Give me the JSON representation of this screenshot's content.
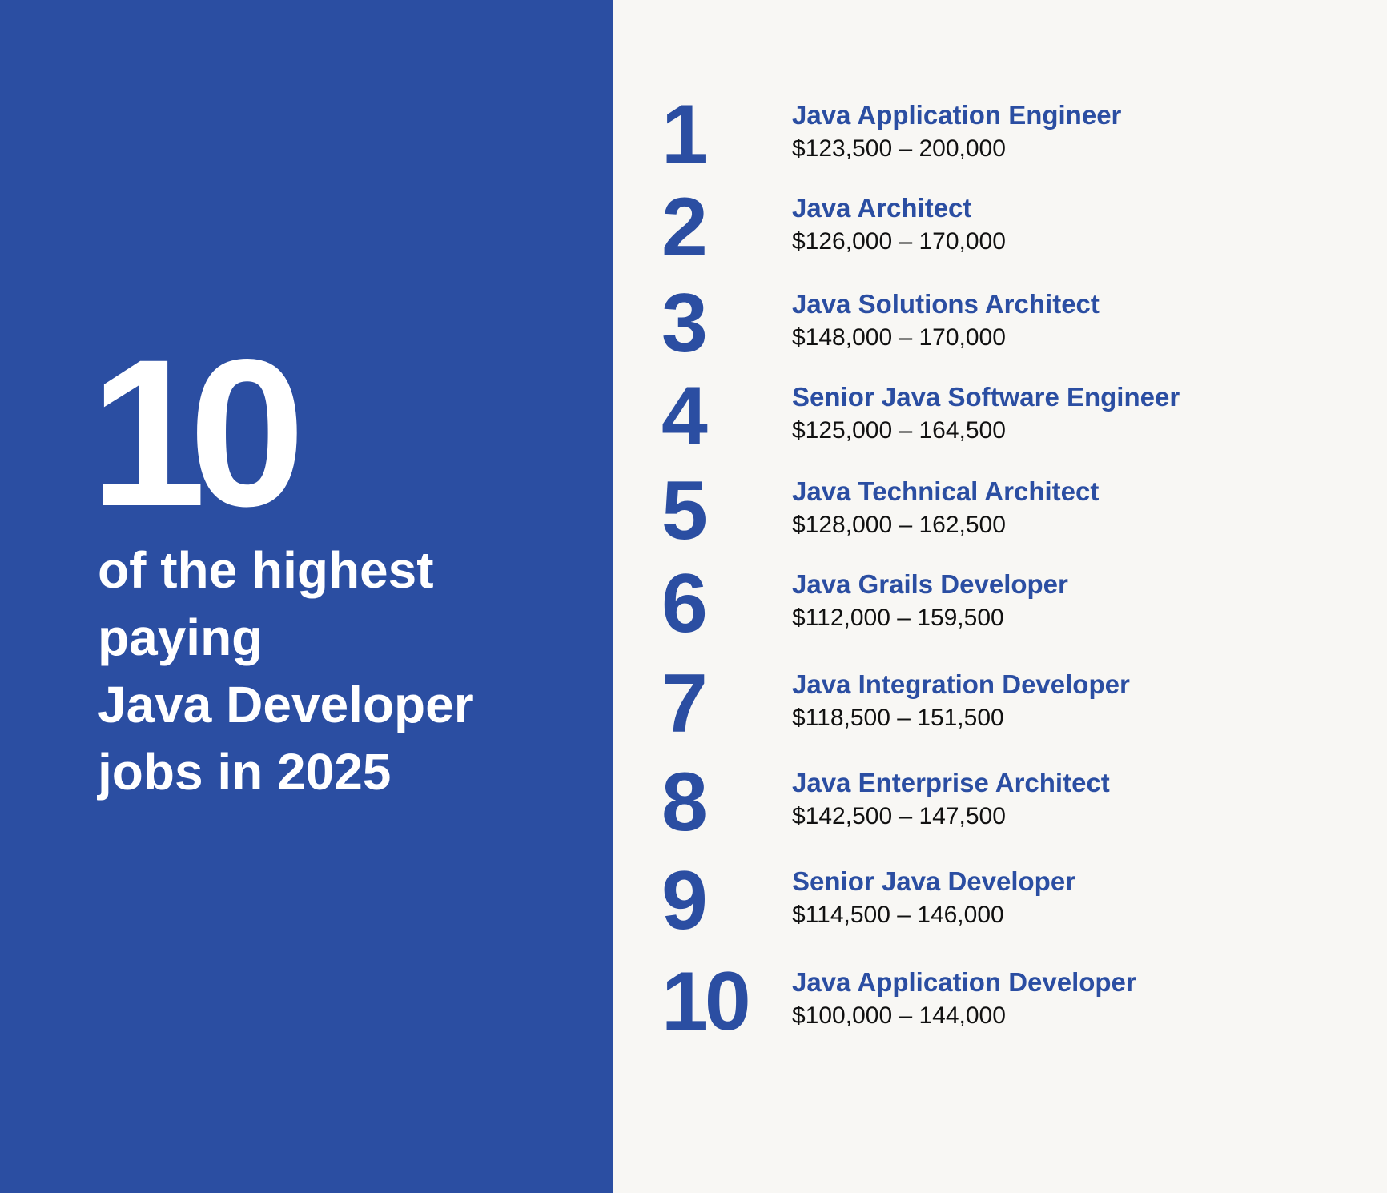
{
  "hero": {
    "count": "10",
    "headline_lines": [
      "of the highest",
      "paying",
      "Java Developer",
      "jobs in 2025"
    ]
  },
  "jobs": [
    {
      "rank": "1",
      "title": "Java Application Engineer",
      "salary": "$123,500 – 200,000"
    },
    {
      "rank": "2",
      "title": "Java Architect",
      "salary": "$126,000 – 170,000"
    },
    {
      "rank": "3",
      "title": "Java Solutions Architect",
      "salary": "$148,000 – 170,000"
    },
    {
      "rank": "4",
      "title": "Senior Java Software Engineer",
      "salary": "$125,000 – 164,500"
    },
    {
      "rank": "5",
      "title": "Java Technical Architect",
      "salary": "$128,000 – 162,500"
    },
    {
      "rank": "6",
      "title": "Java Grails Developer",
      "salary": "$112,000 – 159,500"
    },
    {
      "rank": "7",
      "title": "Java Integration Developer",
      "salary": "$118,500 – 151,500"
    },
    {
      "rank": "8",
      "title": "Java Enterprise Architect",
      "salary": "$142,500 – 147,500"
    },
    {
      "rank": "9",
      "title": "Senior Java Developer",
      "salary": "$114,500 – 146,000"
    },
    {
      "rank": "10",
      "title": "Java Application Developer",
      "salary": "$100,000 – 144,000"
    }
  ],
  "colors": {
    "brand_blue": "#2b4ea2",
    "panel_background": "#f8f7f4",
    "hero_text": "#ffffff",
    "salary_text": "#111111"
  }
}
